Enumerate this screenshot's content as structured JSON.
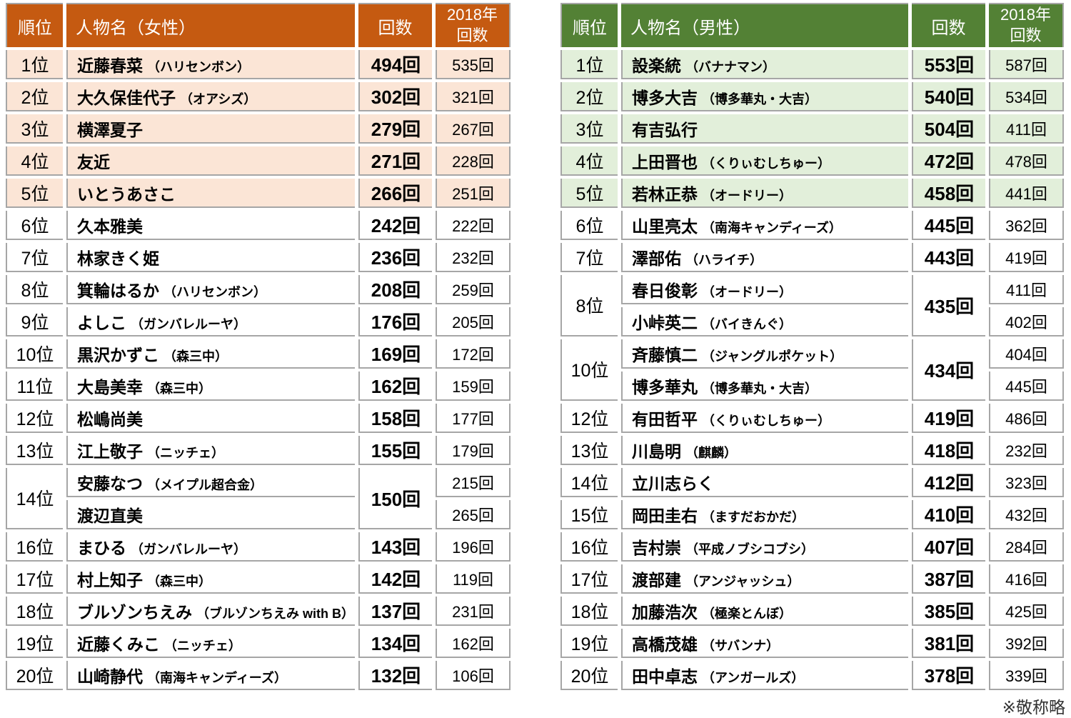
{
  "colors": {
    "female_header_bg": "#C55A11",
    "female_highlight": "#FBE5D6",
    "male_header_bg": "#538135",
    "male_highlight": "#E2EFDA",
    "border_color": "#A6A6A6",
    "header_text": "#FFFFFF"
  },
  "footnote": "※敬称略",
  "chart_data": [
    {
      "type": "table",
      "category": "female-ranking",
      "headers": {
        "rank": "順位",
        "name": "人物名（女性）",
        "count": "回数",
        "year_line1": "2018年",
        "year_line2": "回数"
      },
      "rank_suffix": "位",
      "unit": "回",
      "rows": [
        {
          "rank": 1,
          "highlight": true,
          "count": 494,
          "entries": [
            {
              "name": "近藤春菜",
              "group": "ハリセンボン",
              "year2018": 535
            }
          ]
        },
        {
          "rank": 2,
          "highlight": true,
          "count": 302,
          "entries": [
            {
              "name": "大久保佳代子",
              "group": "オアシズ",
              "year2018": 321
            }
          ]
        },
        {
          "rank": 3,
          "highlight": true,
          "count": 279,
          "entries": [
            {
              "name": "横澤夏子",
              "group": null,
              "year2018": 267
            }
          ]
        },
        {
          "rank": 4,
          "highlight": true,
          "count": 271,
          "entries": [
            {
              "name": "友近",
              "group": null,
              "year2018": 228
            }
          ]
        },
        {
          "rank": 5,
          "highlight": true,
          "count": 266,
          "entries": [
            {
              "name": "いとうあさこ",
              "group": null,
              "year2018": 251
            }
          ]
        },
        {
          "rank": 6,
          "highlight": false,
          "count": 242,
          "entries": [
            {
              "name": "久本雅美",
              "group": null,
              "year2018": 222
            }
          ]
        },
        {
          "rank": 7,
          "highlight": false,
          "count": 236,
          "entries": [
            {
              "name": "林家きく姫",
              "group": null,
              "year2018": 232
            }
          ]
        },
        {
          "rank": 8,
          "highlight": false,
          "count": 208,
          "entries": [
            {
              "name": "箕輪はるか",
              "group": "ハリセンボン",
              "year2018": 259
            }
          ]
        },
        {
          "rank": 9,
          "highlight": false,
          "count": 176,
          "entries": [
            {
              "name": "よしこ",
              "group": "ガンバレルーヤ",
              "year2018": 205
            }
          ]
        },
        {
          "rank": 10,
          "highlight": false,
          "count": 169,
          "entries": [
            {
              "name": "黒沢かずこ",
              "group": "森三中",
              "year2018": 172
            }
          ]
        },
        {
          "rank": 11,
          "highlight": false,
          "count": 162,
          "entries": [
            {
              "name": "大島美幸",
              "group": "森三中",
              "year2018": 159
            }
          ]
        },
        {
          "rank": 12,
          "highlight": false,
          "count": 158,
          "entries": [
            {
              "name": "松嶋尚美",
              "group": null,
              "year2018": 177
            }
          ]
        },
        {
          "rank": 13,
          "highlight": false,
          "count": 155,
          "entries": [
            {
              "name": "江上敬子",
              "group": "ニッチェ",
              "year2018": 179
            }
          ]
        },
        {
          "rank": 14,
          "highlight": false,
          "count": 150,
          "entries": [
            {
              "name": "安藤なつ",
              "group": "メイプル超合金",
              "year2018": 215
            },
            {
              "name": "渡辺直美",
              "group": null,
              "year2018": 265
            }
          ]
        },
        {
          "rank": 16,
          "highlight": false,
          "count": 143,
          "entries": [
            {
              "name": "まひる",
              "group": "ガンバレルーヤ",
              "year2018": 196
            }
          ]
        },
        {
          "rank": 17,
          "highlight": false,
          "count": 142,
          "entries": [
            {
              "name": "村上知子",
              "group": "森三中",
              "year2018": 119
            }
          ]
        },
        {
          "rank": 18,
          "highlight": false,
          "count": 137,
          "entries": [
            {
              "name": "ブルゾンちえみ",
              "group": "ブルゾンちえみ with B",
              "year2018": 231
            }
          ]
        },
        {
          "rank": 19,
          "highlight": false,
          "count": 134,
          "entries": [
            {
              "name": "近藤くみこ",
              "group": "ニッチェ",
              "year2018": 162
            }
          ]
        },
        {
          "rank": 20,
          "highlight": false,
          "count": 132,
          "entries": [
            {
              "name": "山崎静代",
              "group": "南海キャンディーズ",
              "year2018": 106
            }
          ]
        }
      ]
    },
    {
      "type": "table",
      "category": "male-ranking",
      "headers": {
        "rank": "順位",
        "name": "人物名（男性）",
        "count": "回数",
        "year_line1": "2018年",
        "year_line2": "回数"
      },
      "rank_suffix": "位",
      "unit": "回",
      "rows": [
        {
          "rank": 1,
          "highlight": true,
          "count": 553,
          "entries": [
            {
              "name": "設楽統",
              "group": "バナナマン",
              "year2018": 587
            }
          ]
        },
        {
          "rank": 2,
          "highlight": true,
          "count": 540,
          "entries": [
            {
              "name": "博多大吉",
              "group": "博多華丸・大吉",
              "year2018": 534
            }
          ]
        },
        {
          "rank": 3,
          "highlight": true,
          "count": 504,
          "entries": [
            {
              "name": "有吉弘行",
              "group": null,
              "year2018": 411
            }
          ]
        },
        {
          "rank": 4,
          "highlight": true,
          "count": 472,
          "entries": [
            {
              "name": "上田晋也",
              "group": "くりぃむしちゅー",
              "year2018": 478
            }
          ]
        },
        {
          "rank": 5,
          "highlight": true,
          "count": 458,
          "entries": [
            {
              "name": "若林正恭",
              "group": "オードリー",
              "year2018": 441
            }
          ]
        },
        {
          "rank": 6,
          "highlight": false,
          "count": 445,
          "entries": [
            {
              "name": "山里亮太",
              "group": "南海キャンディーズ",
              "year2018": 362
            }
          ]
        },
        {
          "rank": 7,
          "highlight": false,
          "count": 443,
          "entries": [
            {
              "name": "澤部佑",
              "group": "ハライチ",
              "year2018": 419
            }
          ]
        },
        {
          "rank": 8,
          "highlight": false,
          "count": 435,
          "entries": [
            {
              "name": "春日俊彰",
              "group": "オードリー",
              "year2018": 411
            },
            {
              "name": "小峠英二",
              "group": "バイきんぐ",
              "year2018": 402
            }
          ]
        },
        {
          "rank": 10,
          "highlight": false,
          "count": 434,
          "entries": [
            {
              "name": "斉藤慎二",
              "group": "ジャングルポケット",
              "year2018": 404
            },
            {
              "name": "博多華丸",
              "group": "博多華丸・大吉",
              "year2018": 445
            }
          ]
        },
        {
          "rank": 12,
          "highlight": false,
          "count": 419,
          "entries": [
            {
              "name": "有田哲平",
              "group": "くりぃむしちゅー",
              "year2018": 486
            }
          ]
        },
        {
          "rank": 13,
          "highlight": false,
          "count": 418,
          "entries": [
            {
              "name": "川島明",
              "group": "麒麟",
              "year2018": 232
            }
          ]
        },
        {
          "rank": 14,
          "highlight": false,
          "count": 412,
          "entries": [
            {
              "name": "立川志らく",
              "group": null,
              "year2018": 323
            }
          ]
        },
        {
          "rank": 15,
          "highlight": false,
          "count": 410,
          "entries": [
            {
              "name": "岡田圭右",
              "group": "ますだおかだ",
              "year2018": 432
            }
          ]
        },
        {
          "rank": 16,
          "highlight": false,
          "count": 407,
          "entries": [
            {
              "name": "吉村崇",
              "group": "平成ノブシコブシ",
              "year2018": 284
            }
          ]
        },
        {
          "rank": 17,
          "highlight": false,
          "count": 387,
          "entries": [
            {
              "name": "渡部建",
              "group": "アンジャッシュ",
              "year2018": 416
            }
          ]
        },
        {
          "rank": 18,
          "highlight": false,
          "count": 385,
          "entries": [
            {
              "name": "加藤浩次",
              "group": "極楽とんぼ",
              "year2018": 425
            }
          ]
        },
        {
          "rank": 19,
          "highlight": false,
          "count": 381,
          "entries": [
            {
              "name": "高橋茂雄",
              "group": "サバンナ",
              "year2018": 392
            }
          ]
        },
        {
          "rank": 20,
          "highlight": false,
          "count": 378,
          "entries": [
            {
              "name": "田中卓志",
              "group": "アンガールズ",
              "year2018": 339
            }
          ]
        }
      ]
    }
  ]
}
